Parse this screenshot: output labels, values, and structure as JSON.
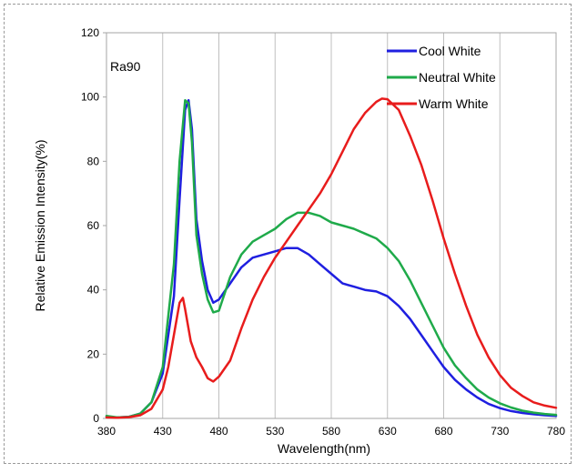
{
  "chart_data": {
    "type": "line",
    "title": "",
    "xlabel": "Wavelength(nm)",
    "ylabel": "Relative Emission Intensity(%)",
    "xlim": [
      380,
      780
    ],
    "ylim": [
      0,
      120
    ],
    "xticks": [
      380,
      430,
      480,
      530,
      580,
      630,
      680,
      730,
      780
    ],
    "yticks": [
      0,
      20,
      40,
      60,
      80,
      100,
      120
    ],
    "grid": "vertical",
    "legend_position": "top-right",
    "annotation": "Ra90",
    "series": [
      {
        "name": "Cool White",
        "color": "#1f1fe0",
        "x": [
          380,
          390,
          400,
          410,
          420,
          430,
          440,
          445,
          450,
          453,
          456,
          460,
          465,
          470,
          475,
          480,
          490,
          500,
          510,
          520,
          530,
          540,
          550,
          560,
          570,
          580,
          590,
          600,
          610,
          620,
          630,
          640,
          650,
          660,
          670,
          680,
          690,
          700,
          710,
          720,
          730,
          740,
          750,
          760,
          770,
          780
        ],
        "y": [
          0.5,
          0.3,
          0.5,
          1.5,
          5,
          14,
          38,
          68,
          96,
          99,
          90,
          62,
          49,
          40,
          36,
          37,
          42,
          47,
          50,
          51,
          52,
          53,
          53,
          51,
          48,
          45,
          42,
          41,
          40,
          39.5,
          38,
          35,
          31,
          26,
          21,
          16,
          12,
          9,
          6.5,
          4.5,
          3.2,
          2.3,
          1.7,
          1.3,
          1,
          0.8
        ]
      },
      {
        "name": "Neutral White",
        "color": "#1faa4a",
        "x": [
          380,
          390,
          400,
          410,
          420,
          430,
          440,
          445,
          450,
          453,
          456,
          460,
          465,
          470,
          475,
          480,
          490,
          500,
          510,
          520,
          530,
          540,
          550,
          560,
          570,
          580,
          590,
          600,
          610,
          620,
          630,
          640,
          650,
          660,
          670,
          680,
          690,
          700,
          710,
          720,
          730,
          740,
          750,
          760,
          770,
          780
        ],
        "y": [
          0.8,
          0.3,
          0.5,
          1.5,
          5,
          16,
          48,
          80,
          99,
          98,
          86,
          57,
          45,
          37,
          33,
          33.5,
          44,
          51,
          55,
          57,
          59,
          62,
          64,
          64,
          63,
          61,
          60,
          59,
          57.5,
          56,
          53,
          49,
          43,
          36,
          29,
          22,
          16.5,
          12.5,
          9,
          6.5,
          4.7,
          3.4,
          2.4,
          1.8,
          1.4,
          1.1
        ]
      },
      {
        "name": "Warm White",
        "color": "#e81c1c",
        "x": [
          380,
          390,
          400,
          410,
          420,
          430,
          435,
          440,
          445,
          448,
          450,
          455,
          460,
          465,
          470,
          475,
          480,
          490,
          500,
          510,
          520,
          530,
          540,
          550,
          560,
          570,
          580,
          590,
          600,
          610,
          620,
          625,
          630,
          640,
          650,
          660,
          670,
          680,
          690,
          700,
          710,
          720,
          730,
          740,
          750,
          760,
          770,
          780
        ],
        "y": [
          0.3,
          0.2,
          0.4,
          1,
          3,
          9,
          16,
          26,
          36,
          37.5,
          34,
          24,
          19,
          16,
          12.5,
          11.5,
          13,
          18,
          28,
          37,
          44,
          50,
          55,
          60,
          65,
          70,
          76,
          83,
          90,
          95,
          98.5,
          99.5,
          99.3,
          96,
          88,
          79,
          68,
          56,
          45,
          35,
          26,
          19,
          13.5,
          9.5,
          7,
          5,
          4,
          3.3
        ]
      }
    ]
  }
}
